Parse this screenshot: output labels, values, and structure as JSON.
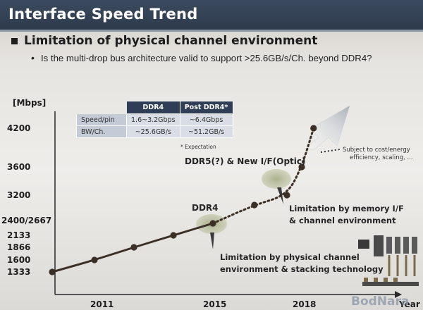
{
  "slide": {
    "title": "Interface Speed Trend",
    "heading": "Limitation of physical channel environment",
    "subheading": "Is the multi-drop bus architecture valid to support >25.6GB/s/Ch. beyond DDR4?",
    "watermark": "BodNara"
  },
  "spec_table": {
    "headers": [
      "",
      "DDR4",
      "Post DDR4*"
    ],
    "rows": [
      [
        "Speed/pin",
        "1.6~3.2Gbps",
        "~6.4Gbps"
      ],
      [
        "BW/Ch.",
        "~25.6GB/s",
        "~51.2GB/s"
      ]
    ],
    "footnote": "* Expectation"
  },
  "chart_data": {
    "type": "line",
    "title": "",
    "xlabel": "Year",
    "ylabel": "[Mbps]",
    "x_ticks": [
      "2011",
      "2015",
      "2018"
    ],
    "y_ticks": [
      "1333",
      "1600",
      "1866",
      "2133",
      "2400/2667",
      "3200",
      "3600",
      "4200"
    ],
    "series": [
      {
        "points": [
          {
            "x": 2009.3,
            "y": 1333
          },
          {
            "x": 2010.8,
            "y": 1600
          },
          {
            "x": 2012.2,
            "y": 1866
          },
          {
            "x": 2013.6,
            "y": 2133
          },
          {
            "x": 2015.0,
            "y": 2400
          },
          {
            "x": 2016.4,
            "y": 2667
          },
          {
            "x": 2017.5,
            "y": 3200
          },
          {
            "x": 2018.0,
            "y": 3600
          },
          {
            "x": 2018.4,
            "y": 4200
          }
        ]
      }
    ],
    "labels": {
      "ddr4": "DDR4",
      "ddr5": "DDR5(?) & New I/F(Optic)",
      "limit_physical": [
        "Limitation by physical channel",
        "environment & stacking technology"
      ],
      "limit_memory": [
        "Limitation by memory I/F",
        "& channel environment"
      ],
      "note": [
        "Subject to cost/energy",
        "efficiency, scaling, ..."
      ]
    }
  }
}
